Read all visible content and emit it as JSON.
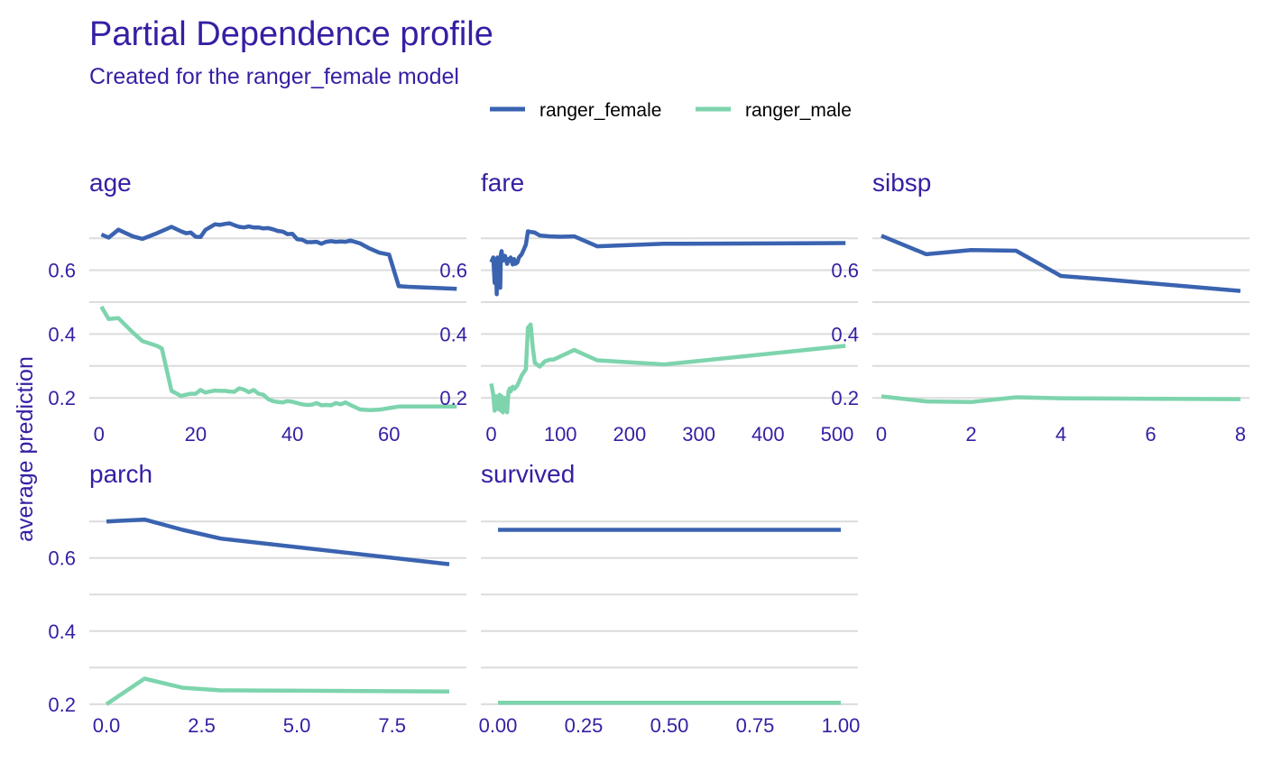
{
  "chart_data": {
    "type": "line",
    "title": "Partial Dependence profile",
    "subtitle": "Created for the ranger_female model",
    "ylabel": "average prediction",
    "legend_position": "top",
    "grid": true,
    "colors": {
      "ranger_female": "#3a63b0",
      "ranger_male": "#7dd4ad",
      "text": "#371ea3",
      "grid": "#dcdcdc"
    },
    "series_names": [
      "ranger_female",
      "ranger_male"
    ],
    "panels": [
      {
        "name": "age",
        "xlim": [
          -2,
          76
        ],
        "ylim": [
          0.13,
          0.76
        ],
        "xticks": [
          0,
          20,
          40,
          60
        ],
        "xtick_labels": [
          "0",
          "20",
          "40",
          "60"
        ],
        "yticks": [
          0.2,
          0.4,
          0.6
        ],
        "ytick_labels": [
          "0.2",
          "0.4",
          "0.6"
        ],
        "series": [
          {
            "name": "ranger_female",
            "x": [
              0.5,
              2,
              4,
              7,
              9,
              12,
              15,
              17,
              18,
              19,
              20,
              21,
              22,
              23,
              24,
              25,
              26,
              27,
              28,
              29,
              30,
              31,
              32,
              33,
              34,
              35,
              36,
              37,
              38,
              39,
              40,
              41,
              42,
              43,
              44,
              45,
              46,
              47,
              48,
              49,
              50,
              51,
              52,
              54,
              56,
              58,
              60,
              62,
              64,
              74
            ],
            "y": [
              0.712,
              0.702,
              0.727,
              0.706,
              0.698,
              0.716,
              0.736,
              0.722,
              0.716,
              0.718,
              0.705,
              0.704,
              0.726,
              0.735,
              0.744,
              0.742,
              0.745,
              0.747,
              0.741,
              0.736,
              0.734,
              0.737,
              0.734,
              0.734,
              0.731,
              0.732,
              0.728,
              0.723,
              0.721,
              0.713,
              0.714,
              0.697,
              0.696,
              0.688,
              0.688,
              0.689,
              0.683,
              0.689,
              0.691,
              0.689,
              0.69,
              0.689,
              0.693,
              0.684,
              0.668,
              0.655,
              0.649,
              0.55,
              0.548,
              0.542
            ]
          },
          {
            "name": "ranger_male",
            "x": [
              0.5,
              2,
              4,
              7,
              9,
              12,
              13,
              15,
              17,
              18,
              19,
              20,
              21,
              22,
              23,
              24,
              25,
              26,
              27,
              28,
              29,
              30,
              31,
              32,
              33,
              34,
              35,
              36,
              37,
              38,
              39,
              40,
              41,
              42,
              43,
              44,
              45,
              46,
              47,
              48,
              49,
              50,
              51,
              52,
              54,
              56,
              58,
              60,
              62,
              64,
              74
            ],
            "y": [
              0.486,
              0.447,
              0.45,
              0.405,
              0.378,
              0.363,
              0.355,
              0.222,
              0.206,
              0.21,
              0.213,
              0.213,
              0.225,
              0.217,
              0.22,
              0.223,
              0.222,
              0.222,
              0.22,
              0.219,
              0.23,
              0.226,
              0.218,
              0.225,
              0.213,
              0.21,
              0.196,
              0.19,
              0.187,
              0.186,
              0.19,
              0.188,
              0.184,
              0.18,
              0.178,
              0.179,
              0.184,
              0.177,
              0.178,
              0.177,
              0.184,
              0.18,
              0.186,
              0.178,
              0.164,
              0.162,
              0.163,
              0.168,
              0.173,
              0.173,
              0.173
            ]
          }
        ]
      },
      {
        "name": "fare",
        "xlim": [
          -15,
          530
        ],
        "ylim": [
          0.13,
          0.76
        ],
        "xticks": [
          0,
          100,
          200,
          300,
          400,
          500
        ],
        "xtick_labels": [
          "0",
          "100",
          "200",
          "300",
          "400",
          "500"
        ],
        "yticks": [
          0.2,
          0.4,
          0.6
        ],
        "ytick_labels": [
          "0.2",
          "0.4",
          "0.6"
        ],
        "series": [
          {
            "name": "ranger_female",
            "x": [
              0,
              3,
              5,
              7,
              8,
              9,
              10,
              12,
              13,
              14,
              15,
              17,
              20,
              23,
              25,
              27,
              28,
              31,
              33,
              35,
              38,
              40,
              44,
              50,
              53,
              57,
              63,
              70,
              85,
              100,
              120,
              153,
              250,
              512
            ],
            "y": [
              0.625,
              0.64,
              0.56,
              0.61,
              0.525,
              0.64,
              0.56,
              0.63,
              0.545,
              0.65,
              0.66,
              0.63,
              0.645,
              0.62,
              0.635,
              0.63,
              0.64,
              0.618,
              0.635,
              0.62,
              0.625,
              0.64,
              0.65,
              0.68,
              0.722,
              0.72,
              0.718,
              0.709,
              0.706,
              0.705,
              0.706,
              0.675,
              0.683,
              0.685
            ]
          },
          {
            "name": "ranger_male",
            "x": [
              0,
              3,
              5,
              7,
              8,
              9,
              10,
              12,
              13,
              14,
              15,
              17,
              20,
              23,
              25,
              27,
              28,
              31,
              33,
              35,
              38,
              40,
              44,
              50,
              53,
              57,
              60,
              63,
              70,
              78,
              85,
              90,
              100,
              120,
              153,
              250,
              512
            ],
            "y": [
              0.245,
              0.21,
              0.16,
              0.205,
              0.19,
              0.2,
              0.165,
              0.21,
              0.175,
              0.16,
              0.205,
              0.155,
              0.2,
              0.155,
              0.22,
              0.23,
              0.22,
              0.235,
              0.228,
              0.232,
              0.24,
              0.25,
              0.27,
              0.29,
              0.42,
              0.43,
              0.36,
              0.31,
              0.298,
              0.315,
              0.32,
              0.32,
              0.33,
              0.35,
              0.318,
              0.305,
              0.363
            ]
          }
        ]
      },
      {
        "name": "sibsp",
        "xlim": [
          -0.2,
          8.2
        ],
        "ylim": [
          0.13,
          0.76
        ],
        "xticks": [
          0,
          2,
          4,
          6,
          8
        ],
        "xtick_labels": [
          "0",
          "2",
          "4",
          "6",
          "8"
        ],
        "yticks": [
          0.2,
          0.4,
          0.6
        ],
        "ytick_labels": [
          "0.2",
          "0.4",
          "0.6"
        ],
        "series": [
          {
            "name": "ranger_female",
            "x": [
              0,
              1,
              2,
              3,
              4,
              5,
              8
            ],
            "y": [
              0.708,
              0.65,
              0.663,
              0.661,
              0.582,
              0.571,
              0.535
            ]
          },
          {
            "name": "ranger_male",
            "x": [
              0,
              1,
              2,
              3,
              4,
              5,
              8
            ],
            "y": [
              0.205,
              0.189,
              0.187,
              0.202,
              0.199,
              0.198,
              0.196
            ]
          }
        ]
      },
      {
        "name": "parch",
        "xlim": [
          -0.45,
          9.45
        ],
        "ylim": [
          0.18,
          0.73
        ],
        "xticks": [
          0,
          2.5,
          5,
          7.5
        ],
        "xtick_labels": [
          "0.0",
          "2.5",
          "5.0",
          "7.5"
        ],
        "yticks": [
          0.2,
          0.4,
          0.6
        ],
        "ytick_labels": [
          "0.2",
          "0.4",
          "0.6"
        ],
        "series": [
          {
            "name": "ranger_female",
            "x": [
              0,
              1,
              2,
              3,
              9
            ],
            "y": [
              0.7,
              0.705,
              0.677,
              0.653,
              0.583
            ]
          },
          {
            "name": "ranger_male",
            "x": [
              0,
              1,
              2,
              3,
              9
            ],
            "y": [
              0.2,
              0.27,
              0.245,
              0.238,
              0.235
            ]
          }
        ]
      },
      {
        "name": "survived",
        "xlim": [
          -0.05,
          1.05
        ],
        "ylim": [
          0.18,
          0.73
        ],
        "xticks": [
          0,
          0.25,
          0.5,
          0.75,
          1
        ],
        "xtick_labels": [
          "0.00",
          "0.25",
          "0.50",
          "0.75",
          "1.00"
        ],
        "yticks": [],
        "ytick_labels": [],
        "series": [
          {
            "name": "ranger_female",
            "x": [
              0,
              1
            ],
            "y": [
              0.677,
              0.677
            ]
          },
          {
            "name": "ranger_male",
            "x": [
              0,
              1
            ],
            "y": [
              0.204,
              0.204
            ]
          }
        ]
      }
    ]
  }
}
